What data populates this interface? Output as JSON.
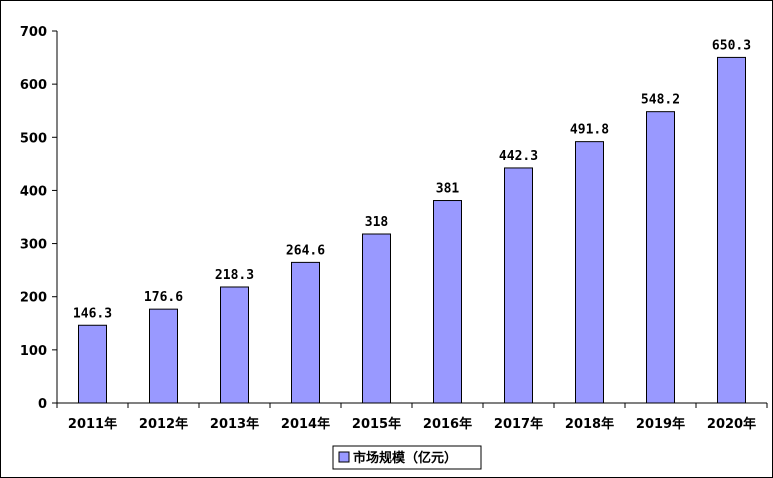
{
  "chart_data": {
    "type": "bar",
    "title": "",
    "xlabel": "",
    "ylabel": "",
    "categories": [
      "2011年",
      "2012年",
      "2013年",
      "2014年",
      "2015年",
      "2016年",
      "2017年",
      "2018年",
      "2019年",
      "2020年"
    ],
    "series": [
      {
        "name": "市场规模（亿元）",
        "values": [
          146.3,
          176.6,
          218.3,
          264.6,
          318,
          381,
          442.3,
          491.8,
          548.2,
          650.3
        ],
        "labels": [
          "146.3",
          "176.6",
          "218.3",
          "264.6",
          "318",
          "381",
          "442.3",
          "491.8",
          "548.2",
          "650.3"
        ]
      }
    ],
    "ylim": [
      0,
      700
    ],
    "yticks": [
      "0",
      "100",
      "200",
      "300",
      "400",
      "500",
      "600",
      "700"
    ],
    "grid": false,
    "legend_position": "bottom-center",
    "colors": {
      "bar_fill": "#9999ff",
      "bar_stroke": "#000000"
    }
  }
}
